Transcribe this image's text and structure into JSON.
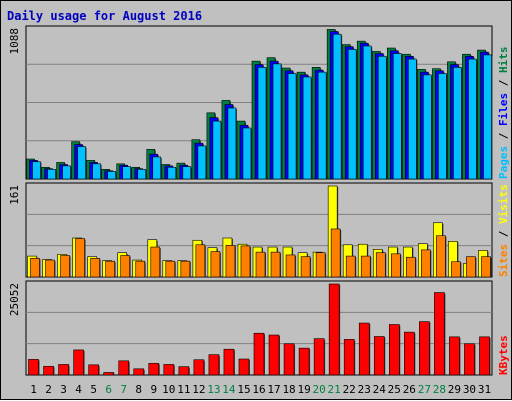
{
  "chart_data": {
    "type": "bar",
    "title": "Daily usage for August 2016",
    "categories": [
      "1",
      "2",
      "3",
      "4",
      "5",
      "6",
      "7",
      "8",
      "9",
      "10",
      "11",
      "12",
      "13",
      "14",
      "15",
      "16",
      "17",
      "18",
      "19",
      "20",
      "21",
      "22",
      "23",
      "24",
      "25",
      "26",
      "27",
      "28",
      "29",
      "30",
      "31"
    ],
    "weekend_days": [
      "6",
      "7",
      "13",
      "14",
      "20",
      "21",
      "27",
      "28"
    ],
    "panels": [
      {
        "id": "hits-files-pages",
        "ymax_label": "1088",
        "ylim": [
          0,
          1088
        ],
        "legend": [
          "Pages",
          "/",
          "Files",
          "/",
          "Hits"
        ],
        "series": [
          {
            "name": "Hits",
            "color": "#008040",
            "values": [
              145,
              85,
              120,
              270,
              135,
              70,
              110,
              85,
              215,
              105,
              115,
              285,
              480,
              570,
              420,
              855,
              880,
              805,
              775,
              810,
              1085,
              975,
              1000,
              925,
              950,
              905,
              795,
              800,
              850,
              905,
              935
            ]
          },
          {
            "name": "Files",
            "color": "#0000ff",
            "values": [
              135,
              75,
              105,
              250,
              120,
              60,
              100,
              75,
              180,
              95,
              100,
              260,
              445,
              540,
              390,
              830,
              855,
              785,
              755,
              790,
              1070,
              960,
              985,
              910,
              930,
              890,
              775,
              785,
              830,
              890,
              920
            ]
          },
          {
            "name": "Pages",
            "color": "#00c0ff",
            "values": [
              125,
              70,
              95,
              235,
              110,
              55,
              90,
              70,
              160,
              85,
              90,
              240,
              420,
              515,
              370,
              810,
              835,
              765,
              740,
              775,
              1050,
              940,
              965,
              890,
              910,
              870,
              755,
              765,
              810,
              870,
              900
            ]
          }
        ]
      },
      {
        "id": "visits-sites",
        "ymax_label": "161",
        "ylim": [
          0,
          161
        ],
        "legend": [
          "Sites",
          "/",
          "Visits"
        ],
        "series": [
          {
            "name": "Visits",
            "color": "#ffff00",
            "values": [
              37,
              31,
              40,
              69,
              36,
              29,
              43,
              30,
              66,
              29,
              29,
              65,
              52,
              69,
              58,
              53,
              53,
              53,
              43,
              44,
              161,
              57,
              58,
              49,
              53,
              53,
              59,
              96,
              63,
              24,
              47
            ]
          },
          {
            "name": "Sites",
            "color": "#ff8000",
            "values": [
              33,
              30,
              38,
              68,
              33,
              28,
              38,
              28,
              53,
              28,
              28,
              57,
              45,
              56,
              55,
              44,
              44,
              39,
              36,
              43,
              85,
              37,
              37,
              43,
              41,
              35,
              48,
              73,
              27,
              36,
              36
            ]
          }
        ]
      },
      {
        "id": "kbytes",
        "ymax_label": "25052",
        "ylim": [
          0,
          25052
        ],
        "legend": [
          "KBytes"
        ],
        "series": [
          {
            "name": "KBytes",
            "color": "#ff0000",
            "values": [
              4300,
              2400,
              2900,
              6900,
              2800,
              700,
              3900,
              1700,
              3200,
              2900,
              2300,
              4200,
              5600,
              7100,
              4400,
              11500,
              11000,
              8600,
              7400,
              10000,
              25052,
              9800,
              14300,
              10600,
              13900,
              11800,
              14700,
              22700,
              10500,
              8600,
              10500
            ]
          }
        ]
      }
    ]
  },
  "colors": {
    "background": "#c0c0c0",
    "plot_bg": "#c0c0c0",
    "title": "#0000c0",
    "weekday_label": "#000000",
    "weekend_label": "#008040"
  }
}
